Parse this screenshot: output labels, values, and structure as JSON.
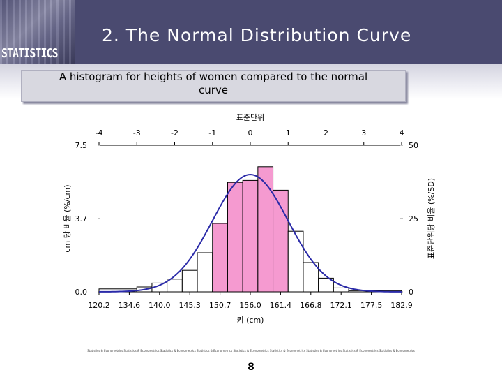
{
  "header": {
    "logo_text": "STATISTICS",
    "title": "2. The Normal Distribution Curve"
  },
  "caption": {
    "line1": "A histogram for heights of women compared to the normal",
    "line2": "curve"
  },
  "chart_data": {
    "type": "bar",
    "title": "",
    "top_axis_label": "표준단위",
    "top_ticks": [
      "-4",
      "-3",
      "-2",
      "-1",
      "0",
      "1",
      "2",
      "3",
      "4"
    ],
    "xlabel": "키 (cm)",
    "x_ticks": [
      "120.2",
      "134.6",
      "140.0",
      "145.3",
      "150.7",
      "156.0",
      "161.4",
      "166.8",
      "172.1",
      "177.5",
      "182.9"
    ],
    "ylabel_left": "cm 당 비율 (%/cm)",
    "left_ticks": [
      "0.0",
      "3.7",
      "7.5"
    ],
    "ylim_left": [
      0,
      7.5
    ],
    "ylabel_right": "표준단위당 비율 (%/SD)",
    "right_ticks": [
      "0",
      "25",
      "50"
    ],
    "ylim_right": [
      0,
      50
    ],
    "bars": [
      {
        "x0": -4.0,
        "x1": -3.0,
        "value": 0.15,
        "highlight": false
      },
      {
        "x0": -3.0,
        "x1": -2.6,
        "value": 0.25,
        "highlight": false
      },
      {
        "x0": -2.6,
        "x1": -2.2,
        "value": 0.45,
        "highlight": false
      },
      {
        "x0": -2.2,
        "x1": -1.8,
        "value": 0.65,
        "highlight": false
      },
      {
        "x0": -1.8,
        "x1": -1.4,
        "value": 1.1,
        "highlight": false
      },
      {
        "x0": -1.4,
        "x1": -1.0,
        "value": 2.0,
        "highlight": false
      },
      {
        "x0": -1.0,
        "x1": -0.6,
        "value": 3.5,
        "highlight": true
      },
      {
        "x0": -0.6,
        "x1": -0.2,
        "value": 5.6,
        "highlight": true
      },
      {
        "x0": -0.2,
        "x1": 0.2,
        "value": 5.7,
        "highlight": true
      },
      {
        "x0": 0.2,
        "x1": 0.6,
        "value": 6.4,
        "highlight": true
      },
      {
        "x0": 0.6,
        "x1": 1.0,
        "value": 5.2,
        "highlight": true
      },
      {
        "x0": 1.0,
        "x1": 1.4,
        "value": 3.1,
        "highlight": false
      },
      {
        "x0": 1.4,
        "x1": 1.8,
        "value": 1.5,
        "highlight": false
      },
      {
        "x0": 1.8,
        "x1": 2.2,
        "value": 0.7,
        "highlight": false
      },
      {
        "x0": 2.2,
        "x1": 2.6,
        "value": 0.2,
        "highlight": false
      },
      {
        "x0": 2.6,
        "x1": 4.0,
        "value": 0.06,
        "highlight": false
      }
    ],
    "curve": {
      "type": "normal",
      "mean": 0,
      "sd": 1,
      "peak": 6.0
    },
    "colors": {
      "highlight_bar": "#f59ad0",
      "plain_bar": "#ffffff",
      "curve": "#2a2aa8",
      "bar_stroke": "#000000"
    }
  },
  "footer": {
    "strip_text": "Statistics & Econometrics Statistics & Econometrics Statistics & Econometrics Statistics & Econometrics Statistics & Econometrics Statistics & Econometrics Statistics & Econometrics Statistics & Econometrics Statistics & Econometrics",
    "page_number": "8"
  }
}
